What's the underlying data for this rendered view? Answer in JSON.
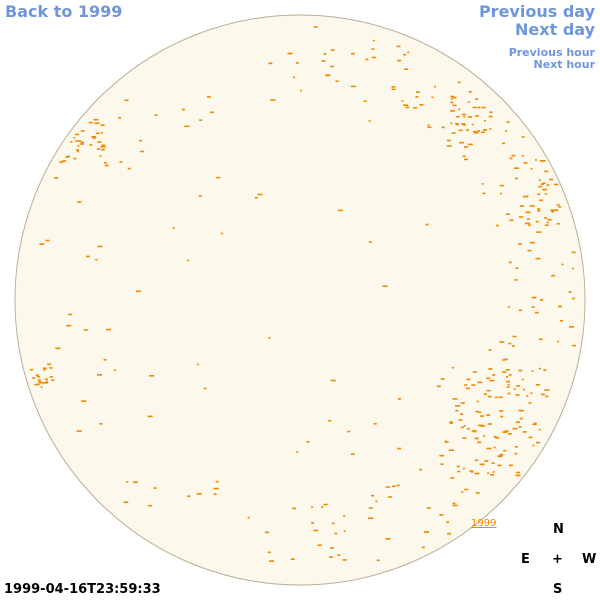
{
  "nav": {
    "back": "Back to 1999",
    "previous_day": "Previous day",
    "next_day": "Next day",
    "previous_hour": "Previous hour",
    "next_hour": "Next hour"
  },
  "colors": {
    "link": "#6f96dd",
    "disc_fill": "#fdf8ec",
    "disc_stroke": "#b9ae98",
    "marker": "#ee8800"
  },
  "sky": {
    "label": "1999"
  },
  "compass": {
    "n": "N",
    "s": "S",
    "e": "E",
    "w": "W",
    "center": "+"
  },
  "timestamp": "1999-04-16T23:59:33"
}
